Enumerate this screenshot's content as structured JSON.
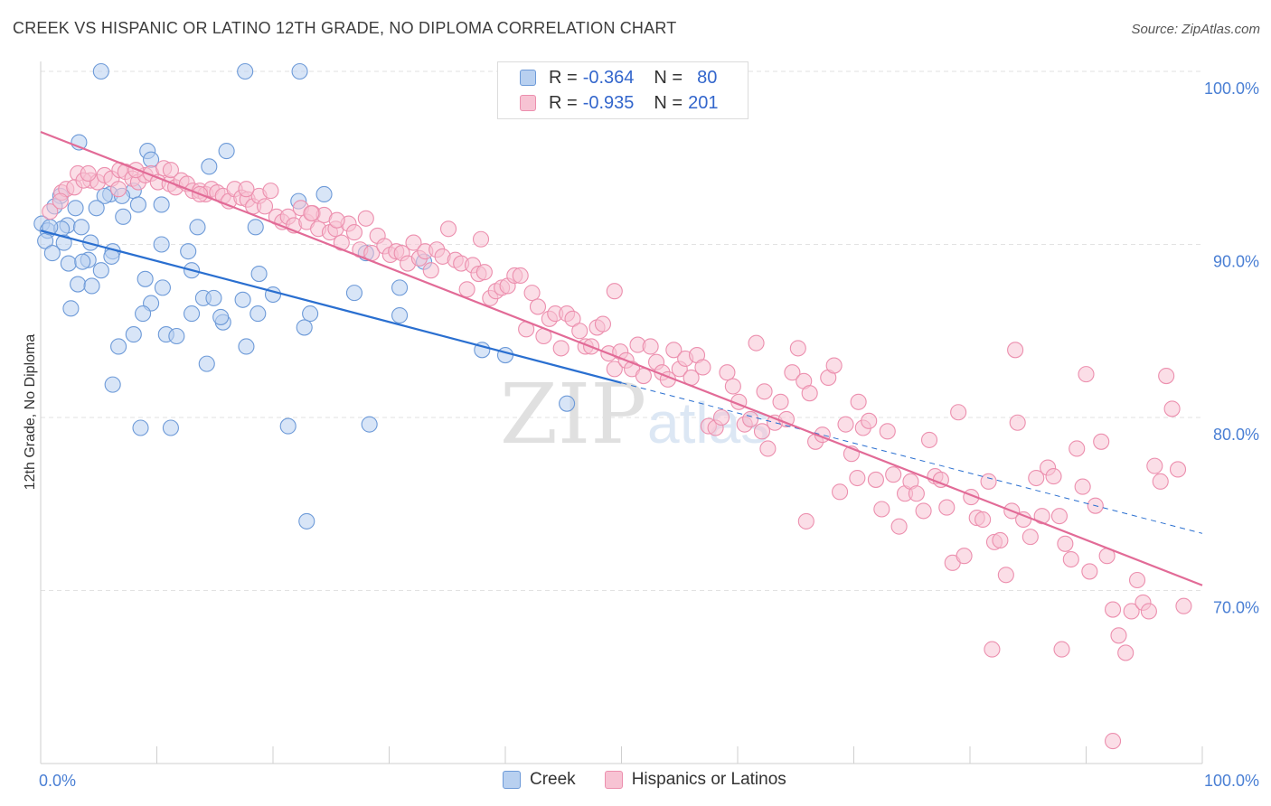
{
  "header": {
    "title": "CREEK VS HISPANIC OR LATINO 12TH GRADE, NO DIPLOMA CORRELATION CHART",
    "source": "Source: ZipAtlas.com"
  },
  "legend": {
    "rows": [
      {
        "r_label": "R =",
        "r_value": "-0.364",
        "n_label": "N =",
        "n_value": "80"
      },
      {
        "r_label": "R =",
        "r_value": "-0.935",
        "n_label": "N =",
        "n_value": "201"
      }
    ]
  },
  "colors": {
    "creek_fill": "#b8d0f0",
    "creek_stroke": "#6d9ad8",
    "creek_line": "#2a6fd0",
    "hisp_fill": "#f7c3d3",
    "hisp_stroke": "#ec8fae",
    "hisp_line": "#e26b97",
    "tick_label": "#4a7fd4",
    "grid": "#e2e2e2"
  },
  "watermark": {
    "zip": "ZIP",
    "atlas": "atlas"
  },
  "chart_data": {
    "type": "scatter",
    "title": "CREEK VS HISPANIC OR LATINO 12TH GRADE, NO DIPLOMA CORRELATION CHART",
    "xlabel": "",
    "ylabel": "12th Grade, No Diploma",
    "x_ticks": [
      "0.0%",
      "100.0%"
    ],
    "y_ticks": [
      "100.0%",
      "90.0%",
      "80.0%",
      "70.0%"
    ],
    "xlim": [
      0,
      100
    ],
    "ylim": [
      60,
      101
    ],
    "grid": true,
    "legend_position": "bottom-center",
    "series": [
      {
        "name": "Creek",
        "r": -0.364,
        "n": 80,
        "trend": {
          "x0": 0,
          "y0": 90.8,
          "x1": 50,
          "y1": 82.0,
          "dash_to_x": 100,
          "dash_to_y": 73.3
        },
        "points": [
          [
            5.2,
            100
          ],
          [
            17.6,
            100
          ],
          [
            22.3,
            100
          ],
          [
            3.3,
            95.9
          ],
          [
            9.2,
            95.4
          ],
          [
            16,
            95.4
          ],
          [
            9.5,
            94.9
          ],
          [
            14.5,
            94.5
          ],
          [
            8,
            93.1
          ],
          [
            6,
            92.9
          ],
          [
            5.5,
            92.8
          ],
          [
            7,
            92.8
          ],
          [
            24.4,
            92.9
          ],
          [
            1.7,
            92.8
          ],
          [
            1.2,
            92.2
          ],
          [
            3,
            92.1
          ],
          [
            4.8,
            92.1
          ],
          [
            7.1,
            91.6
          ],
          [
            8.4,
            92.3
          ],
          [
            10.4,
            92.3
          ],
          [
            0.1,
            91.2
          ],
          [
            0.6,
            90.8
          ],
          [
            2.3,
            91.1
          ],
          [
            1.8,
            90.9
          ],
          [
            0.4,
            90.2
          ],
          [
            2,
            90.1
          ],
          [
            4.3,
            90.1
          ],
          [
            6.2,
            89.6
          ],
          [
            10.4,
            90
          ],
          [
            12.7,
            89.6
          ],
          [
            1,
            89.5
          ],
          [
            4.1,
            89.1
          ],
          [
            6.1,
            89.3
          ],
          [
            2.4,
            88.9
          ],
          [
            3.6,
            89
          ],
          [
            5.2,
            88.5
          ],
          [
            13,
            88.5
          ],
          [
            9,
            88
          ],
          [
            3.2,
            87.7
          ],
          [
            4.4,
            87.6
          ],
          [
            10.5,
            87.5
          ],
          [
            14,
            86.9
          ],
          [
            14.9,
            86.9
          ],
          [
            17.4,
            86.8
          ],
          [
            20,
            87.1
          ],
          [
            27,
            87.2
          ],
          [
            30.9,
            87.5
          ],
          [
            2.6,
            86.3
          ],
          [
            9.5,
            86.6
          ],
          [
            8.8,
            86
          ],
          [
            13,
            86
          ],
          [
            18.7,
            86
          ],
          [
            23.2,
            86
          ],
          [
            30.9,
            85.9
          ],
          [
            15.7,
            85.5
          ],
          [
            15.5,
            85.8
          ],
          [
            10.8,
            84.8
          ],
          [
            11.7,
            84.7
          ],
          [
            8,
            84.8
          ],
          [
            22.7,
            85.2
          ],
          [
            17.7,
            84.1
          ],
          [
            6.7,
            84.1
          ],
          [
            38,
            83.9
          ],
          [
            40,
            83.6
          ],
          [
            14.3,
            83.1
          ],
          [
            6.2,
            81.9
          ],
          [
            45.3,
            80.8
          ],
          [
            8.6,
            79.4
          ],
          [
            11.2,
            79.4
          ],
          [
            21.3,
            79.5
          ],
          [
            28.3,
            79.6
          ],
          [
            22.9,
            74.0
          ],
          [
            18.5,
            91.0
          ],
          [
            22.2,
            92.5
          ],
          [
            28,
            89.5
          ],
          [
            33,
            89.0
          ],
          [
            3.5,
            91.0
          ],
          [
            13.5,
            91.0
          ],
          [
            18.8,
            88.3
          ],
          [
            0.8,
            91.0
          ]
        ]
      },
      {
        "name": "Hispanics or Latinos",
        "r": -0.935,
        "n": 201,
        "trend": {
          "x0": 0,
          "y0": 96.5,
          "x1": 100,
          "y1": 70.3
        },
        "points": [
          [
            0.8,
            91.9
          ],
          [
            1.8,
            93
          ],
          [
            2.2,
            93.2
          ],
          [
            1.7,
            92.5
          ],
          [
            3.2,
            94.1
          ],
          [
            2.9,
            93.3
          ],
          [
            4.3,
            93.7
          ],
          [
            3.7,
            93.7
          ],
          [
            4.9,
            93.6
          ],
          [
            5.5,
            94
          ],
          [
            6.1,
            93.8
          ],
          [
            6.8,
            94.3
          ],
          [
            7.3,
            94.2
          ],
          [
            7.9,
            93.8
          ],
          [
            8.4,
            93.6
          ],
          [
            9,
            94
          ],
          [
            9.5,
            94.1
          ],
          [
            10.1,
            93.6
          ],
          [
            10.6,
            94.4
          ],
          [
            11.1,
            93.5
          ],
          [
            11.6,
            93.3
          ],
          [
            12.1,
            93.7
          ],
          [
            12.6,
            93.5
          ],
          [
            13.1,
            93.1
          ],
          [
            13.7,
            93.1
          ],
          [
            14.2,
            92.9
          ],
          [
            14.7,
            93.2
          ],
          [
            15.2,
            93
          ],
          [
            15.7,
            92.8
          ],
          [
            16.2,
            92.5
          ],
          [
            16.7,
            93.2
          ],
          [
            17.3,
            92.7
          ],
          [
            17.8,
            92.6
          ],
          [
            18.3,
            92.2
          ],
          [
            18.8,
            92.8
          ],
          [
            19.3,
            92.2
          ],
          [
            19.8,
            93.1
          ],
          [
            20.3,
            91.6
          ],
          [
            20.8,
            91.3
          ],
          [
            21.3,
            91.6
          ],
          [
            21.8,
            91.1
          ],
          [
            22.4,
            92.1
          ],
          [
            22.9,
            91.3
          ],
          [
            23.4,
            91.8
          ],
          [
            23.9,
            90.9
          ],
          [
            24.4,
            91.7
          ],
          [
            24.9,
            90.7
          ],
          [
            25.4,
            90.9
          ],
          [
            25.9,
            90.1
          ],
          [
            26.5,
            91.2
          ],
          [
            27,
            90.7
          ],
          [
            27.5,
            89.7
          ],
          [
            28,
            91.5
          ],
          [
            28.5,
            89.5
          ],
          [
            29,
            90.5
          ],
          [
            29.6,
            89.9
          ],
          [
            30.1,
            89.4
          ],
          [
            30.6,
            89.6
          ],
          [
            31.1,
            89.5
          ],
          [
            31.6,
            88.9
          ],
          [
            32.1,
            90.1
          ],
          [
            32.6,
            89.2
          ],
          [
            33.1,
            89.6
          ],
          [
            33.6,
            88.5
          ],
          [
            34.1,
            89.7
          ],
          [
            34.6,
            89.3
          ],
          [
            35.1,
            90.9
          ],
          [
            35.7,
            89.1
          ],
          [
            36.2,
            88.9
          ],
          [
            36.7,
            87.4
          ],
          [
            37.2,
            88.8
          ],
          [
            37.7,
            88.3
          ],
          [
            38.2,
            88.4
          ],
          [
            38.7,
            86.9
          ],
          [
            39.2,
            87.3
          ],
          [
            39.7,
            87.5
          ],
          [
            40.2,
            87.6
          ],
          [
            40.8,
            88.2
          ],
          [
            41.3,
            88.2
          ],
          [
            41.8,
            85.1
          ],
          [
            42.3,
            87.2
          ],
          [
            42.8,
            86.4
          ],
          [
            43.3,
            84.7
          ],
          [
            43.8,
            85.7
          ],
          [
            44.3,
            86
          ],
          [
            44.8,
            84
          ],
          [
            45.3,
            86
          ],
          [
            45.8,
            85.7
          ],
          [
            46.4,
            85
          ],
          [
            46.9,
            84.1
          ],
          [
            47.4,
            84.1
          ],
          [
            47.9,
            85.2
          ],
          [
            48.4,
            85.4
          ],
          [
            48.9,
            83.7
          ],
          [
            49.4,
            82.8
          ],
          [
            49.9,
            83.8
          ],
          [
            50.4,
            83.3
          ],
          [
            50.9,
            82.8
          ],
          [
            51.4,
            84.2
          ],
          [
            51.9,
            82.4
          ],
          [
            52.5,
            84.1
          ],
          [
            53,
            83.2
          ],
          [
            53.5,
            82.6
          ],
          [
            54,
            82.2
          ],
          [
            54.5,
            83.9
          ],
          [
            55,
            82.8
          ],
          [
            55.5,
            83.4
          ],
          [
            56,
            82.3
          ],
          [
            56.5,
            83.6
          ],
          [
            57,
            82.9
          ],
          [
            57.5,
            79.5
          ],
          [
            58.1,
            79.4
          ],
          [
            58.6,
            80
          ],
          [
            59.1,
            82.6
          ],
          [
            59.6,
            81.8
          ],
          [
            60.1,
            80.9
          ],
          [
            60.6,
            79.6
          ],
          [
            61.1,
            79.9
          ],
          [
            61.6,
            84.3
          ],
          [
            62.1,
            79.2
          ],
          [
            62.6,
            78.2
          ],
          [
            63.2,
            79.7
          ],
          [
            63.7,
            80.9
          ],
          [
            64.2,
            79.9
          ],
          [
            64.7,
            82.6
          ],
          [
            65.2,
            84
          ],
          [
            65.7,
            82.1
          ],
          [
            66.2,
            81.4
          ],
          [
            66.7,
            78.6
          ],
          [
            67.3,
            79
          ],
          [
            67.8,
            82.3
          ],
          [
            68.3,
            83
          ],
          [
            68.8,
            75.7
          ],
          [
            69.3,
            79.6
          ],
          [
            69.8,
            77.9
          ],
          [
            70.3,
            76.5
          ],
          [
            70.8,
            79.4
          ],
          [
            71.3,
            79.8
          ],
          [
            71.9,
            76.4
          ],
          [
            72.4,
            74.7
          ],
          [
            72.9,
            79.2
          ],
          [
            73.4,
            76.7
          ],
          [
            73.9,
            73.7
          ],
          [
            74.4,
            75.6
          ],
          [
            74.9,
            76.3
          ],
          [
            75.4,
            75.6
          ],
          [
            76,
            74.6
          ],
          [
            76.5,
            78.7
          ],
          [
            77,
            76.6
          ],
          [
            77.5,
            76.4
          ],
          [
            78,
            74.8
          ],
          [
            78.5,
            71.6
          ],
          [
            79,
            80.3
          ],
          [
            79.5,
            72
          ],
          [
            80.1,
            75.4
          ],
          [
            80.6,
            74.2
          ],
          [
            81.1,
            74.1
          ],
          [
            81.6,
            76.3
          ],
          [
            82.1,
            72.8
          ],
          [
            82.6,
            72.9
          ],
          [
            83.1,
            70.9
          ],
          [
            83.6,
            74.6
          ],
          [
            84.1,
            79.7
          ],
          [
            84.6,
            74.1
          ],
          [
            85.2,
            73.1
          ],
          [
            85.7,
            76.5
          ],
          [
            86.2,
            74.3
          ],
          [
            86.7,
            77.1
          ],
          [
            87.2,
            76.6
          ],
          [
            87.7,
            74.3
          ],
          [
            88.2,
            72.7
          ],
          [
            88.7,
            71.8
          ],
          [
            89.2,
            78.2
          ],
          [
            89.7,
            76
          ],
          [
            90.3,
            71.1
          ],
          [
            90.8,
            74.9
          ],
          [
            91.3,
            78.6
          ],
          [
            91.8,
            72
          ],
          [
            92.3,
            68.9
          ],
          [
            92.8,
            67.4
          ],
          [
            93.4,
            66.4
          ],
          [
            93.9,
            68.8
          ],
          [
            94.4,
            70.6
          ],
          [
            94.9,
            69.3
          ],
          [
            95.4,
            68.8
          ],
          [
            95.9,
            77.2
          ],
          [
            96.4,
            76.3
          ],
          [
            96.9,
            82.4
          ],
          [
            97.4,
            80.5
          ],
          [
            97.9,
            77
          ],
          [
            98.4,
            69.1
          ],
          [
            92.3,
            61.3
          ],
          [
            87.9,
            66.6
          ],
          [
            81.9,
            66.6
          ],
          [
            90,
            82.5
          ],
          [
            83.9,
            83.9
          ],
          [
            65.9,
            74.0
          ],
          [
            70.4,
            80.9
          ],
          [
            62.3,
            81.5
          ],
          [
            49.4,
            87.3
          ],
          [
            37.9,
            90.3
          ],
          [
            25.5,
            91.4
          ],
          [
            17.7,
            93.2
          ],
          [
            13.7,
            92.9
          ],
          [
            11.2,
            94.3
          ],
          [
            8.2,
            94.3
          ],
          [
            4.1,
            94.1
          ],
          [
            6.7,
            93.2
          ],
          [
            23.3,
            91.8
          ]
        ]
      }
    ]
  }
}
